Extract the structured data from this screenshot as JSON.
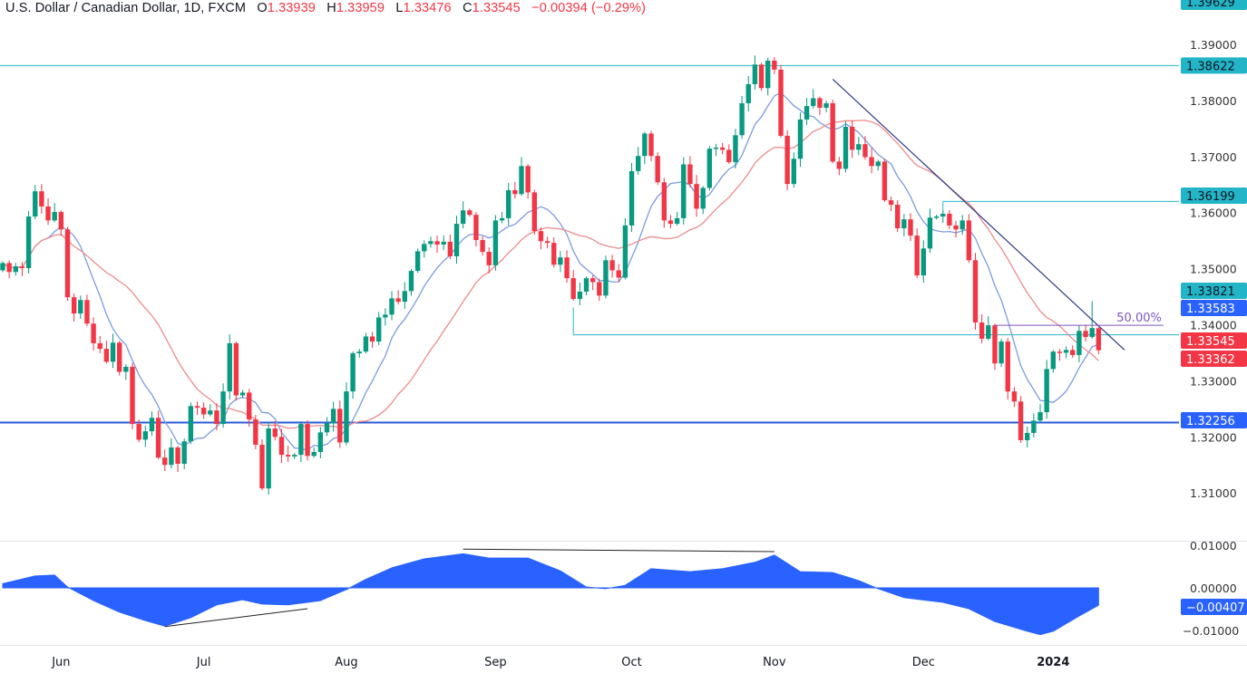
{
  "header": {
    "symbol": "U.S. Dollar / Canadian Dollar, 1D, FXCM",
    "o_label": "O",
    "o": "1.33939",
    "h_label": "H",
    "h": "1.33959",
    "l_label": "L",
    "l": "1.33476",
    "c_label": "C",
    "c": "1.33545",
    "change": "−0.00394 (−0.29%)"
  },
  "colors": {
    "up": "#089981",
    "down": "#f23645",
    "ma_fast": "#7b9be3",
    "ma_slow": "#ef8a8a",
    "level": "#22b5c7",
    "support": "#2a5bd7",
    "trendline": "#2e3a87",
    "fib": "#7e57c2",
    "oscillator": "#2962ff"
  },
  "chart_data": [
    {
      "type": "candlestick",
      "title": "U.S. Dollar / Canadian Dollar, 1D, FXCM",
      "first_open": 1.3497,
      "last_bar": {
        "open": 1.33939,
        "high": 1.33959,
        "low": 1.33476,
        "close": 1.33545
      },
      "closes": [
        1.351,
        1.3494,
        1.3504,
        1.3501,
        1.3593,
        1.3638,
        1.3611,
        1.3586,
        1.3601,
        1.357,
        1.3449,
        1.342,
        1.3444,
        1.3402,
        1.3367,
        1.3357,
        1.3334,
        1.3368,
        1.3316,
        1.3325,
        1.3223,
        1.3195,
        1.321,
        1.3234,
        1.3163,
        1.315,
        1.3181,
        1.3152,
        1.3192,
        1.3255,
        1.3252,
        1.324,
        1.3247,
        1.3223,
        1.3281,
        1.3367,
        1.3274,
        1.3279,
        1.3231,
        1.3186,
        1.3108,
        1.3215,
        1.32,
        1.3168,
        1.3165,
        1.3168,
        1.3223,
        1.3166,
        1.3173,
        1.3208,
        1.3224,
        1.325,
        1.319,
        1.3281,
        1.3349,
        1.3352,
        1.3379,
        1.337,
        1.3413,
        1.3418,
        1.3447,
        1.3441,
        1.346,
        1.3496,
        1.3531,
        1.3544,
        1.3549,
        1.3543,
        1.3548,
        1.3522,
        1.358,
        1.3604,
        1.3596,
        1.3551,
        1.353,
        1.3506,
        1.3586,
        1.359,
        1.364,
        1.3633,
        1.3683,
        1.3636,
        1.3567,
        1.3549,
        1.3546,
        1.3507,
        1.352,
        1.3483,
        1.3446,
        1.3459,
        1.3483,
        1.3476,
        1.3452,
        1.3515,
        1.3497,
        1.3484,
        1.3577,
        1.3674,
        1.3701,
        1.3741,
        1.3701,
        1.3654,
        1.3586,
        1.358,
        1.359,
        1.3686,
        1.3651,
        1.3607,
        1.3644,
        1.3714,
        1.3716,
        1.3712,
        1.369,
        1.3738,
        1.3795,
        1.3829,
        1.3864,
        1.3822,
        1.3871,
        1.3855,
        1.3737,
        1.3651,
        1.3696,
        1.3766,
        1.379,
        1.3804,
        1.3787,
        1.3795,
        1.3691,
        1.3678,
        1.3753,
        1.3712,
        1.3722,
        1.3699,
        1.3683,
        1.3691,
        1.3622,
        1.3614,
        1.3572,
        1.3588,
        1.3559,
        1.3488,
        1.3536,
        1.3591,
        1.3593,
        1.3598,
        1.3577,
        1.357,
        1.3586,
        1.3515,
        1.3404,
        1.3375,
        1.3399,
        1.3331,
        1.337,
        1.3281,
        1.3263,
        1.3194,
        1.3207,
        1.3229,
        1.3244,
        1.3321,
        1.3352,
        1.335,
        1.3355,
        1.3346,
        1.3389,
        1.3378,
        1.3394,
        1.33545
      ],
      "moving_averages": [
        {
          "color_key": "ma_fast",
          "period": 8,
          "last_value": "1.33583"
        },
        {
          "color_key": "ma_slow",
          "period": 21,
          "last_value": "1.33362"
        }
      ],
      "price_ticks": [
        "1.39000",
        "1.38000",
        "1.37000",
        "1.36000",
        "1.35000",
        "1.34000",
        "1.33000",
        "1.32000",
        "1.31000"
      ],
      "ylim": [
        1.3079,
        1.3975
      ],
      "time_ticks": [
        {
          "label": "Jun",
          "bar": 9
        },
        {
          "label": "Jul",
          "bar": 31
        },
        {
          "label": "Aug",
          "bar": 53
        },
        {
          "label": "Sep",
          "bar": 76
        },
        {
          "label": "Oct",
          "bar": 97
        },
        {
          "label": "Nov",
          "bar": 119
        },
        {
          "label": "Dec",
          "bar": 142
        },
        {
          "label": "2024",
          "bar": 162,
          "bold": true
        }
      ],
      "levels": [
        {
          "price": 1.38622,
          "label": "1.38622",
          "from_bar": null,
          "color_key": "level",
          "width": 1
        },
        {
          "price": 1.36199,
          "label": "1.36199",
          "from_bar": 145,
          "color_key": "level",
          "width": 1
        },
        {
          "price": 1.33821,
          "label": "1.33821",
          "from_bar": 88,
          "color_key": "level",
          "width": 1
        },
        {
          "price": 1.32256,
          "label": "1.32256",
          "from_bar": null,
          "color_key": "support",
          "width": 2
        }
      ],
      "top_label": "1.39629",
      "current_price_label": "1.33545",
      "fib_line": {
        "price": 1.3399,
        "from_bar": 153,
        "to_bar": 179,
        "label": "50.00%"
      },
      "trendline": {
        "from": {
          "bar": 128,
          "price": 1.3838
        },
        "to": {
          "bar": 173,
          "price": 1.3355
        }
      }
    },
    {
      "type": "area",
      "ticks": [
        "0.01000",
        "0.00000",
        "-0.01000"
      ],
      "ylim": [
        -0.0135,
        0.0105
      ],
      "last_value_label": "−0.00407",
      "points": [
        [
          0,
          0.001
        ],
        [
          5,
          0.0028
        ],
        [
          8,
          0.003
        ],
        [
          10,
          0.0002
        ],
        [
          14,
          -0.003
        ],
        [
          18,
          -0.0057
        ],
        [
          22,
          -0.0077
        ],
        [
          25,
          -0.009
        ],
        [
          29,
          -0.007
        ],
        [
          33,
          -0.004
        ],
        [
          37,
          -0.0028
        ],
        [
          40,
          -0.0038
        ],
        [
          44,
          -0.004
        ],
        [
          49,
          -0.003
        ],
        [
          53,
          -0.0004
        ],
        [
          56,
          0.002
        ],
        [
          60,
          0.0047
        ],
        [
          65,
          0.0068
        ],
        [
          71,
          0.008
        ],
        [
          75,
          0.007
        ],
        [
          81,
          0.007
        ],
        [
          86,
          0.004
        ],
        [
          90,
          0.0002
        ],
        [
          93,
          -0.0002
        ],
        [
          96,
          0.0006
        ],
        [
          100,
          0.0045
        ],
        [
          106,
          0.0038
        ],
        [
          111,
          0.0045
        ],
        [
          116,
          0.006
        ],
        [
          119,
          0.0077
        ],
        [
          123,
          0.0038
        ],
        [
          128,
          0.0036
        ],
        [
          132,
          0.0017
        ],
        [
          135,
          -0.0002
        ],
        [
          139,
          -0.0023
        ],
        [
          145,
          -0.0034
        ],
        [
          149,
          -0.0049
        ],
        [
          153,
          -0.0079
        ],
        [
          158,
          -0.0102
        ],
        [
          160,
          -0.011
        ],
        [
          162,
          -0.0102
        ],
        [
          166,
          -0.0066
        ],
        [
          169,
          -0.00407
        ]
      ],
      "divergence_lines": [
        {
          "from": {
            "bar": 71,
            "value": 0.0091
          },
          "to": {
            "bar": 119,
            "value": 0.0085
          }
        },
        {
          "from": {
            "bar": 25,
            "value": -0.0091
          },
          "to": {
            "bar": 47,
            "value": -0.0049
          }
        }
      ]
    }
  ]
}
